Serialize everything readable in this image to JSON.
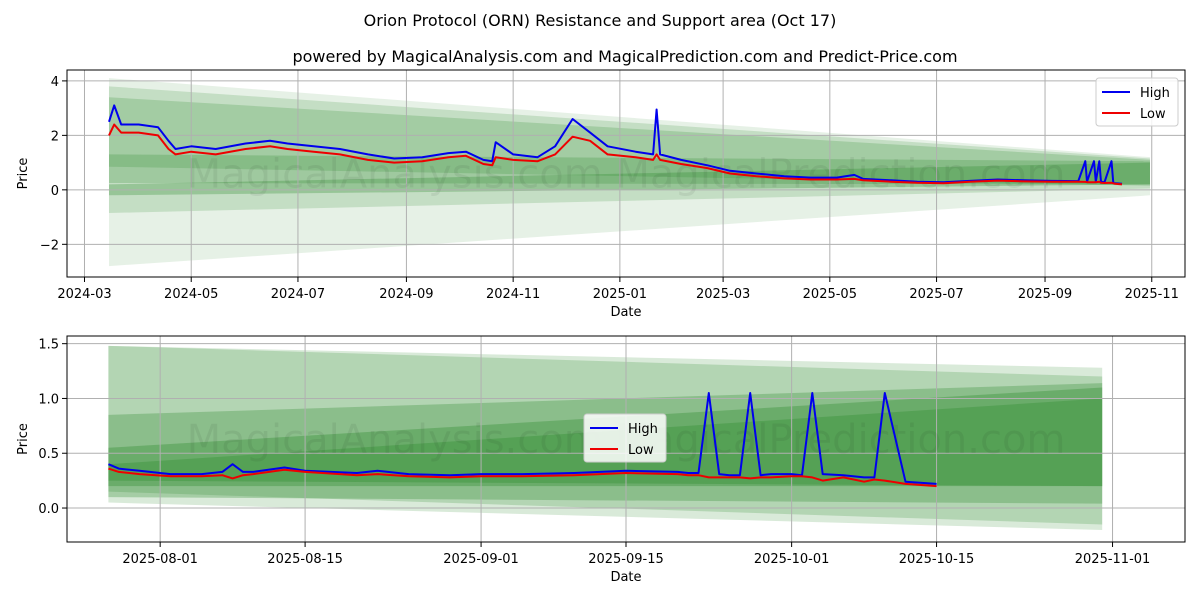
{
  "header": {
    "title": "Orion Protocol (ORN) Resistance and Support area (Oct 17)",
    "subtitle": "powered by MagicalAnalysis.com and MagicalPrediction.com and Predict-Price.com"
  },
  "watermark": "MagicalAnalysis.com   MagicalPrediction.com",
  "colors": {
    "high": "#0000ee",
    "low": "#ee0000",
    "band": "#2e8b2e",
    "grid": "#b0b0b0"
  },
  "chart_data": [
    {
      "type": "line",
      "name": "full-history",
      "xlabel": "Date",
      "ylabel": "Price",
      "xlim": [
        "2024-02-20",
        "2025-11-20"
      ],
      "ylim": [
        -3.2,
        4.4
      ],
      "yticks": [
        -2,
        0,
        2,
        4
      ],
      "ytick_labels": [
        "−2",
        "0",
        "2",
        "4"
      ],
      "xticks": [
        "2024-03-01",
        "2024-05-01",
        "2024-07-01",
        "2024-09-01",
        "2024-11-01",
        "2025-01-01",
        "2025-03-01",
        "2025-05-01",
        "2025-07-01",
        "2025-09-01",
        "2025-11-01"
      ],
      "xtick_labels": [
        "2024-03",
        "2024-05",
        "2024-07",
        "2024-09",
        "2024-11",
        "2025-01",
        "2025-03",
        "2025-05",
        "2025-07",
        "2025-09",
        "2025-11"
      ],
      "legend": {
        "position": "top-right",
        "entries": [
          "High",
          "Low"
        ]
      },
      "bands": [
        {
          "x0": "2024-03-15",
          "x1": "2025-10-31",
          "y0": [
            4.1,
            -2.8
          ],
          "y1": [
            1.2,
            -0.2
          ],
          "opacity": 0.12
        },
        {
          "x0": "2024-03-15",
          "x1": "2025-10-31",
          "y0": [
            3.8,
            -0.85
          ],
          "y1": [
            1.15,
            0.05
          ],
          "opacity": 0.18
        },
        {
          "x0": "2024-03-15",
          "x1": "2025-10-31",
          "y0": [
            3.4,
            0.85
          ],
          "y1": [
            1.1,
            0.15
          ],
          "opacity": 0.22
        },
        {
          "x0": "2024-03-15",
          "x1": "2025-10-31",
          "y0": [
            1.3,
            0.25
          ],
          "y1": [
            1.05,
            0.2
          ],
          "opacity": 0.25
        },
        {
          "x0": "2024-03-15",
          "x1": "2025-10-31",
          "y0": [
            0.2,
            -0.2
          ],
          "y1": [
            1.0,
            0.2
          ],
          "opacity": 0.3
        }
      ],
      "series": [
        {
          "name": "High",
          "x": [
            "2024-03-15",
            "2024-03-18",
            "2024-03-22",
            "2024-04-01",
            "2024-04-12",
            "2024-04-18",
            "2024-04-22",
            "2024-05-01",
            "2024-05-15",
            "2024-06-01",
            "2024-06-15",
            "2024-06-25",
            "2024-07-10",
            "2024-07-25",
            "2024-08-10",
            "2024-08-25",
            "2024-09-10",
            "2024-09-25",
            "2024-10-05",
            "2024-10-15",
            "2024-10-20",
            "2024-10-22",
            "2024-11-01",
            "2024-11-15",
            "2024-11-25",
            "2024-12-05",
            "2024-12-15",
            "2024-12-25",
            "2025-01-10",
            "2025-01-20",
            "2025-01-22",
            "2025-01-24",
            "2025-02-05",
            "2025-02-20",
            "2025-03-05",
            "2025-03-20",
            "2025-04-05",
            "2025-04-20",
            "2025-05-05",
            "2025-05-15",
            "2025-05-20",
            "2025-06-05",
            "2025-06-20",
            "2025-07-05",
            "2025-07-20",
            "2025-08-05",
            "2025-08-20",
            "2025-09-05",
            "2025-09-20",
            "2025-09-24",
            "2025-09-25",
            "2025-09-29",
            "2025-09-30",
            "2025-10-02",
            "2025-10-03",
            "2025-10-05",
            "2025-10-09",
            "2025-10-10",
            "2025-10-11",
            "2025-10-15"
          ],
          "values": [
            2.5,
            3.1,
            2.4,
            2.4,
            2.3,
            1.8,
            1.5,
            1.6,
            1.5,
            1.7,
            1.8,
            1.7,
            1.6,
            1.5,
            1.3,
            1.15,
            1.2,
            1.35,
            1.4,
            1.1,
            1.05,
            1.75,
            1.3,
            1.2,
            1.6,
            2.6,
            2.1,
            1.6,
            1.4,
            1.3,
            2.95,
            1.3,
            1.1,
            0.9,
            0.7,
            0.6,
            0.5,
            0.45,
            0.45,
            0.55,
            0.4,
            0.35,
            0.3,
            0.28,
            0.33,
            0.38,
            0.35,
            0.33,
            0.32,
            1.05,
            0.3,
            1.05,
            0.3,
            1.05,
            0.3,
            0.28,
            1.05,
            0.25,
            0.24,
            0.22
          ]
        },
        {
          "name": "Low",
          "x": [
            "2024-03-15",
            "2024-03-18",
            "2024-03-22",
            "2024-04-01",
            "2024-04-12",
            "2024-04-18",
            "2024-04-22",
            "2024-05-01",
            "2024-05-15",
            "2024-06-01",
            "2024-06-15",
            "2024-06-25",
            "2024-07-10",
            "2024-07-25",
            "2024-08-10",
            "2024-08-25",
            "2024-09-10",
            "2024-09-25",
            "2024-10-05",
            "2024-10-15",
            "2024-10-20",
            "2024-10-22",
            "2024-11-01",
            "2024-11-15",
            "2024-11-25",
            "2024-12-05",
            "2024-12-15",
            "2024-12-25",
            "2025-01-10",
            "2025-01-20",
            "2025-01-22",
            "2025-01-24",
            "2025-02-05",
            "2025-02-20",
            "2025-03-05",
            "2025-03-20",
            "2025-04-05",
            "2025-04-20",
            "2025-05-05",
            "2025-05-15",
            "2025-05-20",
            "2025-06-05",
            "2025-06-20",
            "2025-07-05",
            "2025-07-20",
            "2025-08-05",
            "2025-08-20",
            "2025-09-05",
            "2025-09-20",
            "2025-09-24",
            "2025-09-25",
            "2025-09-29",
            "2025-09-30",
            "2025-10-02",
            "2025-10-03",
            "2025-10-05",
            "2025-10-09",
            "2025-10-10",
            "2025-10-11",
            "2025-10-15"
          ],
          "values": [
            2.0,
            2.4,
            2.1,
            2.1,
            2.0,
            1.5,
            1.3,
            1.4,
            1.3,
            1.5,
            1.6,
            1.5,
            1.4,
            1.3,
            1.1,
            1.0,
            1.05,
            1.2,
            1.25,
            0.95,
            0.9,
            1.2,
            1.1,
            1.05,
            1.3,
            1.95,
            1.8,
            1.3,
            1.2,
            1.1,
            1.3,
            1.1,
            0.95,
            0.8,
            0.6,
            0.5,
            0.42,
            0.38,
            0.38,
            0.4,
            0.35,
            0.3,
            0.26,
            0.24,
            0.3,
            0.34,
            0.31,
            0.3,
            0.3,
            0.29,
            0.28,
            0.28,
            0.28,
            0.3,
            0.26,
            0.25,
            0.26,
            0.24,
            0.22,
            0.2
          ]
        }
      ]
    },
    {
      "type": "line",
      "name": "recent-zoom",
      "xlabel": "Date",
      "ylabel": "Price",
      "xlim": [
        "2025-07-23",
        "2025-11-08"
      ],
      "ylim": [
        -0.31,
        1.57
      ],
      "yticks": [
        0.0,
        0.5,
        1.0,
        1.5
      ],
      "ytick_labels": [
        "0.0",
        "0.5",
        "1.0",
        "1.5"
      ],
      "xticks": [
        "2025-08-01",
        "2025-08-15",
        "2025-09-01",
        "2025-09-15",
        "2025-10-01",
        "2025-10-15",
        "2025-11-01"
      ],
      "xtick_labels": [
        "2025-08-01",
        "2025-08-15",
        "2025-09-01",
        "2025-09-15",
        "2025-10-01",
        "2025-10-15",
        "2025-11-01"
      ],
      "legend": {
        "position": "center",
        "entries": [
          "High",
          "Low"
        ]
      },
      "bands": [
        {
          "x0": "2025-07-27",
          "x1": "2025-10-31",
          "y0": [
            1.48,
            0.05
          ],
          "y1": [
            1.28,
            -0.2
          ],
          "opacity": 0.18
        },
        {
          "x0": "2025-07-27",
          "x1": "2025-10-31",
          "y0": [
            1.48,
            0.15
          ],
          "y1": [
            1.2,
            -0.15
          ],
          "opacity": 0.22
        },
        {
          "x0": "2025-07-27",
          "x1": "2025-10-31",
          "y0": [
            0.85,
            0.1
          ],
          "y1": [
            1.14,
            0.04
          ],
          "opacity": 0.3
        },
        {
          "x0": "2025-07-27",
          "x1": "2025-10-31",
          "y0": [
            0.55,
            0.2
          ],
          "y1": [
            1.1,
            0.2
          ],
          "opacity": 0.35
        },
        {
          "x0": "2025-07-27",
          "x1": "2025-10-31",
          "y0": [
            0.4,
            0.25
          ],
          "y1": [
            1.0,
            0.2
          ],
          "opacity": 0.35
        }
      ],
      "series": [
        {
          "name": "High",
          "x": [
            "2025-07-27",
            "2025-07-28",
            "2025-07-30",
            "2025-08-02",
            "2025-08-05",
            "2025-08-07",
            "2025-08-08",
            "2025-08-09",
            "2025-08-10",
            "2025-08-13",
            "2025-08-15",
            "2025-08-20",
            "2025-08-22",
            "2025-08-25",
            "2025-08-29",
            "2025-09-01",
            "2025-09-05",
            "2025-09-10",
            "2025-09-15",
            "2025-09-20",
            "2025-09-21",
            "2025-09-22",
            "2025-09-23",
            "2025-09-24",
            "2025-09-25",
            "2025-09-26",
            "2025-09-27",
            "2025-09-28",
            "2025-09-29",
            "2025-10-01",
            "2025-10-02",
            "2025-10-03",
            "2025-10-04",
            "2025-10-06",
            "2025-10-08",
            "2025-10-09",
            "2025-10-10",
            "2025-10-12",
            "2025-10-15"
          ],
          "values": [
            0.4,
            0.36,
            0.34,
            0.31,
            0.31,
            0.33,
            0.4,
            0.33,
            0.33,
            0.37,
            0.34,
            0.32,
            0.34,
            0.31,
            0.3,
            0.31,
            0.31,
            0.32,
            0.34,
            0.33,
            0.32,
            0.32,
            1.05,
            0.31,
            0.3,
            0.3,
            1.05,
            0.3,
            0.31,
            0.31,
            0.3,
            1.05,
            0.31,
            0.3,
            0.28,
            0.28,
            1.05,
            0.24,
            0.22
          ]
        },
        {
          "name": "Low",
          "x": [
            "2025-07-27",
            "2025-07-28",
            "2025-07-30",
            "2025-08-02",
            "2025-08-05",
            "2025-08-07",
            "2025-08-08",
            "2025-08-09",
            "2025-08-10",
            "2025-08-13",
            "2025-08-15",
            "2025-08-20",
            "2025-08-22",
            "2025-08-25",
            "2025-08-29",
            "2025-09-01",
            "2025-09-05",
            "2025-09-10",
            "2025-09-15",
            "2025-09-20",
            "2025-09-21",
            "2025-09-22",
            "2025-09-23",
            "2025-09-24",
            "2025-09-25",
            "2025-09-26",
            "2025-09-27",
            "2025-09-28",
            "2025-09-29",
            "2025-10-01",
            "2025-10-02",
            "2025-10-03",
            "2025-10-04",
            "2025-10-06",
            "2025-10-08",
            "2025-10-09",
            "2025-10-10",
            "2025-10-12",
            "2025-10-15"
          ],
          "values": [
            0.36,
            0.33,
            0.31,
            0.29,
            0.29,
            0.3,
            0.27,
            0.3,
            0.31,
            0.35,
            0.33,
            0.3,
            0.31,
            0.29,
            0.28,
            0.29,
            0.29,
            0.3,
            0.32,
            0.31,
            0.3,
            0.3,
            0.28,
            0.28,
            0.28,
            0.28,
            0.27,
            0.28,
            0.28,
            0.29,
            0.29,
            0.28,
            0.25,
            0.28,
            0.24,
            0.26,
            0.25,
            0.22,
            0.2
          ]
        }
      ]
    }
  ]
}
